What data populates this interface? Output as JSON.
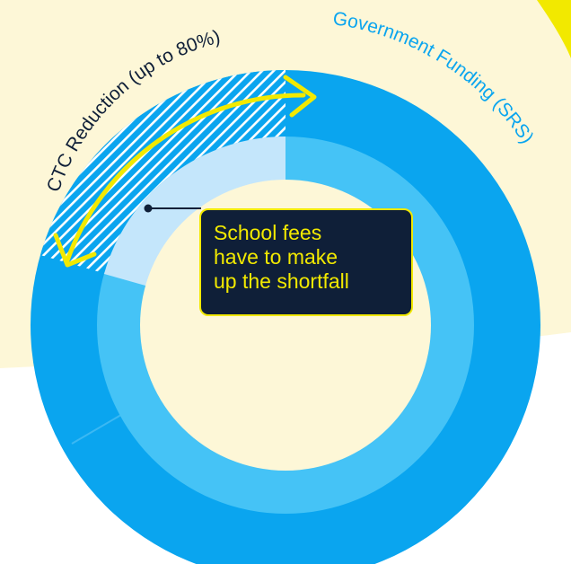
{
  "labels": {
    "ctc_reduction": "CTC Reduction (up to 80%)",
    "government_funding": "Government Funding (SRS)"
  },
  "callout": {
    "line1": "School fees",
    "line2": "have to make",
    "line3": "up the shortfall"
  },
  "colors": {
    "background_band": "#fdf7d7",
    "outer_ring": "#0aa5ef",
    "inner_ring": "#45c3f6",
    "shortfall_wedge": "#c4e6fb",
    "hatch_stripe": "#ffffff",
    "arrow": "#f2e900",
    "callout_bg": "#0f1f38",
    "callout_text": "#f2e900",
    "ctc_label": "#0f1f38",
    "funding_label": "#0aa5ef"
  }
}
